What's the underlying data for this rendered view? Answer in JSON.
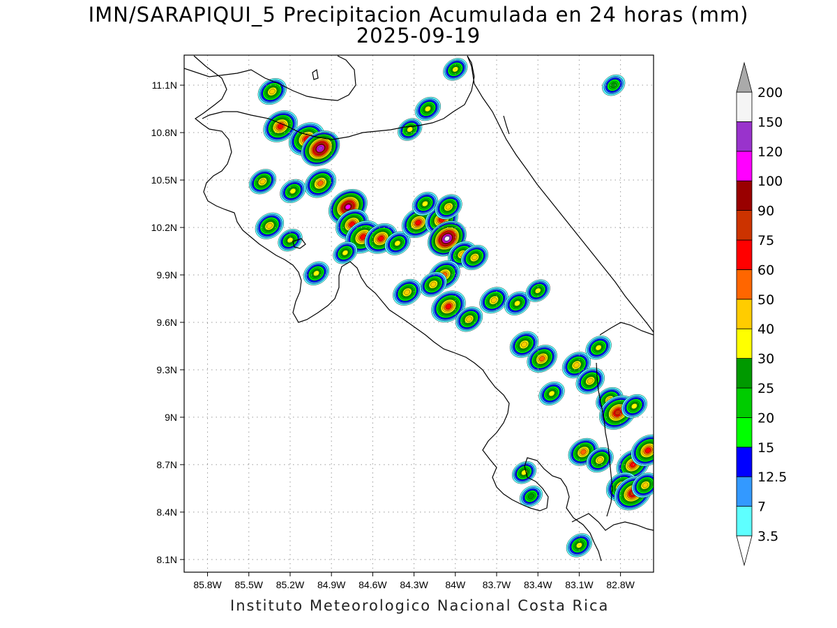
{
  "title": {
    "line1": "IMN/SARAPIQUI_5 Precipitacion Acumulada en 24 horas (mm)",
    "line2": "2025-09-19"
  },
  "footer": "Instituto Meteorologico Nacional Costa Rica",
  "axes": {
    "x_ticks": [
      "85.8W",
      "85.5W",
      "85.2W",
      "84.9W",
      "84.6W",
      "84.3W",
      "84W",
      "83.7W",
      "83.4W",
      "83.1W",
      "82.8W"
    ],
    "x_values": [
      -85.8,
      -85.5,
      -85.2,
      -84.9,
      -84.6,
      -84.3,
      -84.0,
      -83.7,
      -83.4,
      -83.1,
      -82.8
    ],
    "y_ticks": [
      "11.1N",
      "10.8N",
      "10.5N",
      "10.2N",
      "9.9N",
      "9.6N",
      "9.3N",
      "9N",
      "8.7N",
      "8.4N",
      "8.1N"
    ],
    "y_values": [
      11.1,
      10.8,
      10.5,
      10.2,
      9.9,
      9.6,
      9.3,
      9.0,
      8.7,
      8.4,
      8.1
    ],
    "lon_range": [
      -85.97,
      -82.56
    ],
    "lat_range": [
      8.02,
      11.29
    ],
    "grid": true
  },
  "colorbar": {
    "unit": "mm",
    "labels": [
      "3.5",
      "7",
      "12.5",
      "15",
      "20",
      "25",
      "30",
      "40",
      "50",
      "60",
      "75",
      "90",
      "100",
      "120",
      "150",
      "200"
    ],
    "colors": [
      "#5effff",
      "#3399ff",
      "#0000ff",
      "#00ff00",
      "#00cc00",
      "#009900",
      "#ffff00",
      "#ffcc00",
      "#ff6600",
      "#ff0000",
      "#cc3300",
      "#990000",
      "#ff00ff",
      "#9933cc",
      "#f5f5f5",
      "#aaaaaa"
    ],
    "under_color": "#ffffff",
    "over_color": "#aaaaaa"
  },
  "precipitation_cells": [
    {
      "lon": -85.33,
      "lat": 11.06,
      "peak": 45
    },
    {
      "lon": -85.27,
      "lat": 10.84,
      "peak": 65
    },
    {
      "lon": -85.08,
      "lat": 10.76,
      "peak": 70
    },
    {
      "lon": -84.98,
      "lat": 10.7,
      "peak": 120
    },
    {
      "lon": -84.98,
      "lat": 10.48,
      "peak": 55
    },
    {
      "lon": -85.4,
      "lat": 10.49,
      "peak": 40
    },
    {
      "lon": -85.18,
      "lat": 10.43,
      "peak": 35
    },
    {
      "lon": -85.35,
      "lat": 10.21,
      "peak": 45
    },
    {
      "lon": -85.2,
      "lat": 10.12,
      "peak": 30
    },
    {
      "lon": -85.01,
      "lat": 9.91,
      "peak": 35
    },
    {
      "lon": -84.78,
      "lat": 10.33,
      "peak": 100
    },
    {
      "lon": -84.75,
      "lat": 10.22,
      "peak": 60
    },
    {
      "lon": -84.67,
      "lat": 10.14,
      "peak": 70
    },
    {
      "lon": -84.54,
      "lat": 10.13,
      "peak": 60
    },
    {
      "lon": -84.42,
      "lat": 10.1,
      "peak": 35
    },
    {
      "lon": -84.8,
      "lat": 10.04,
      "peak": 30
    },
    {
      "lon": -84.27,
      "lat": 10.23,
      "peak": 60
    },
    {
      "lon": -84.1,
      "lat": 10.25,
      "peak": 60
    },
    {
      "lon": -84.06,
      "lat": 10.13,
      "peak": 150
    },
    {
      "lon": -83.95,
      "lat": 10.03,
      "peak": 45
    },
    {
      "lon": -83.86,
      "lat": 10.01,
      "peak": 40
    },
    {
      "lon": -84.08,
      "lat": 9.9,
      "peak": 55
    },
    {
      "lon": -84.16,
      "lat": 9.84,
      "peak": 40
    },
    {
      "lon": -84.35,
      "lat": 9.79,
      "peak": 45
    },
    {
      "lon": -84.05,
      "lat": 9.7,
      "peak": 65
    },
    {
      "lon": -83.9,
      "lat": 9.62,
      "peak": 40
    },
    {
      "lon": -83.72,
      "lat": 9.74,
      "peak": 45
    },
    {
      "lon": -83.55,
      "lat": 9.72,
      "peak": 35
    },
    {
      "lon": -83.4,
      "lat": 9.8,
      "peak": 30
    },
    {
      "lon": -83.5,
      "lat": 9.46,
      "peak": 45
    },
    {
      "lon": -83.37,
      "lat": 9.37,
      "peak": 50
    },
    {
      "lon": -83.12,
      "lat": 9.33,
      "peak": 45
    },
    {
      "lon": -83.02,
      "lat": 9.23,
      "peak": 45
    },
    {
      "lon": -82.96,
      "lat": 9.44,
      "peak": 35
    },
    {
      "lon": -82.88,
      "lat": 9.11,
      "peak": 40
    },
    {
      "lon": -82.82,
      "lat": 9.03,
      "peak": 75
    },
    {
      "lon": -82.7,
      "lat": 9.07,
      "peak": 35
    },
    {
      "lon": -83.3,
      "lat": 9.15,
      "peak": 35
    },
    {
      "lon": -83.07,
      "lat": 8.78,
      "peak": 50
    },
    {
      "lon": -82.95,
      "lat": 8.73,
      "peak": 40
    },
    {
      "lon": -82.71,
      "lat": 8.7,
      "peak": 60
    },
    {
      "lon": -82.6,
      "lat": 8.79,
      "peak": 65
    },
    {
      "lon": -82.79,
      "lat": 8.56,
      "peak": 55
    },
    {
      "lon": -82.71,
      "lat": 8.52,
      "peak": 75
    },
    {
      "lon": -82.62,
      "lat": 8.57,
      "peak": 40
    },
    {
      "lon": -83.1,
      "lat": 8.19,
      "peak": 35
    },
    {
      "lon": -84.22,
      "lat": 10.35,
      "peak": 35
    },
    {
      "lon": -84.05,
      "lat": 10.33,
      "peak": 40
    },
    {
      "lon": -84.2,
      "lat": 10.95,
      "peak": 35
    },
    {
      "lon": -84.33,
      "lat": 10.82,
      "peak": 30
    },
    {
      "lon": -84.0,
      "lat": 11.2,
      "peak": 30
    },
    {
      "lon": -83.5,
      "lat": 8.65,
      "peak": 30
    },
    {
      "lon": -83.45,
      "lat": 8.5,
      "peak": 25
    },
    {
      "lon": -82.85,
      "lat": 11.1,
      "peak": 25
    }
  ]
}
